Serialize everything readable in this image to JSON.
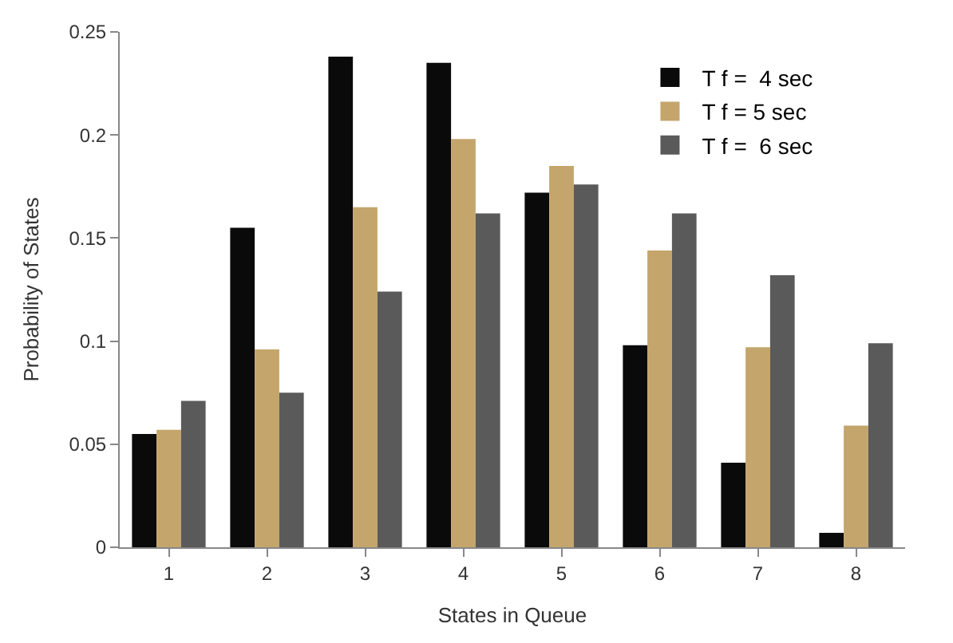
{
  "chart_data": {
    "type": "bar",
    "xlabel": "States in Queue",
    "ylabel": "Probability of States",
    "categories": [
      "1",
      "2",
      "3",
      "4",
      "5",
      "6",
      "7",
      "8"
    ],
    "series": [
      {
        "name": "T f =  4 sec",
        "color": "#0a0a0a",
        "values": [
          0.055,
          0.155,
          0.238,
          0.235,
          0.172,
          0.098,
          0.041,
          0.007
        ]
      },
      {
        "name": "T f = 5 sec",
        "color": "#c4a56c",
        "values": [
          0.057,
          0.096,
          0.165,
          0.198,
          0.185,
          0.144,
          0.097,
          0.059
        ]
      },
      {
        "name": "T f =  6 sec",
        "color": "#5a5a5a",
        "values": [
          0.071,
          0.075,
          0.124,
          0.162,
          0.176,
          0.162,
          0.132,
          0.099
        ]
      }
    ],
    "ylim": [
      0,
      0.25
    ],
    "yticks": [
      0,
      0.05,
      0.1,
      0.15,
      0.2,
      0.25
    ],
    "legend": "top right"
  }
}
